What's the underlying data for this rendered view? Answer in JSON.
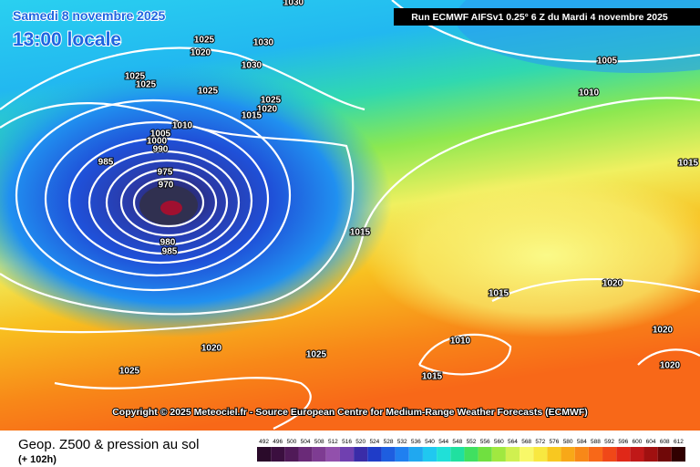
{
  "header": {
    "date": "Samedi 8 novembre 2025",
    "time": "13:00 locale",
    "run": "Run ECMWF AIFSv1 0.25° 6 Z du Mardi 4 novembre 2025"
  },
  "map": {
    "isobar_labels": [
      "1030",
      "1025",
      "1020",
      "1030",
      "1030",
      "1025",
      "1025",
      "1025",
      "1025",
      "1020",
      "1015",
      "1010",
      "1005",
      "1000",
      "990",
      "985",
      "975",
      "970",
      "980",
      "985",
      "1015",
      "1005",
      "1010",
      "1015",
      "1020",
      "1020",
      "1020",
      "1015",
      "1010",
      "1015",
      "1020",
      "1025",
      "1025"
    ],
    "copyright": "Copyright © 2025 Meteociel.fr - Source European Centre for Medium-Range Weather Forecasts (ECMWF)"
  },
  "footer": {
    "title": "Geop. Z500 & pression au sol",
    "lead": "(+ 102h)"
  },
  "legend": {
    "labels": [
      492,
      496,
      500,
      504,
      508,
      512,
      516,
      520,
      524,
      528,
      532,
      536,
      540,
      544,
      548,
      552,
      556,
      560,
      564,
      568,
      572,
      576,
      580,
      584,
      588,
      592,
      596,
      600,
      604,
      608,
      612
    ],
    "colors": [
      "#2a0a2a",
      "#3b0f3f",
      "#501a58",
      "#6a2a78",
      "#7e3c92",
      "#9250ac",
      "#7040b0",
      "#3a2ca8",
      "#1f3cc8",
      "#1e5ee0",
      "#2080f0",
      "#20a8f0",
      "#20c8f0",
      "#20e0d8",
      "#20e0a0",
      "#40e060",
      "#70e040",
      "#a0e840",
      "#d0f050",
      "#f8f868",
      "#f8e840",
      "#f8c820",
      "#f8a818",
      "#f88818",
      "#f86818",
      "#f04818",
      "#e02818",
      "#c01818",
      "#a01010",
      "#700808",
      "#300000"
    ]
  }
}
